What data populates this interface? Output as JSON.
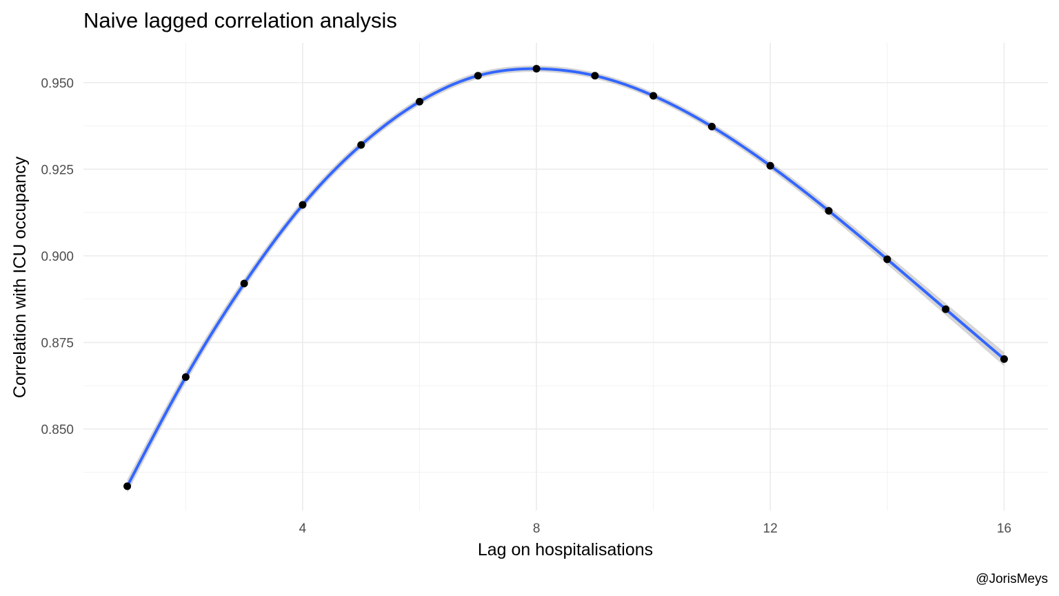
{
  "chart_data": {
    "type": "scatter",
    "title": "Naive lagged correlation analysis",
    "xlabel": "Lag on hospitalisations",
    "ylabel": "Correlation with ICU occupancy",
    "caption": "@JorisMeys",
    "xlim": [
      0.25,
      16.75
    ],
    "ylim": [
      0.8265,
      0.9615
    ],
    "x_ticks": [
      4,
      8,
      12,
      16
    ],
    "x_tick_labels": [
      "4",
      "8",
      "12",
      "16"
    ],
    "y_ticks": [
      0.85,
      0.875,
      0.9,
      0.925,
      0.95
    ],
    "y_tick_labels": [
      "0.850",
      "0.875",
      "0.900",
      "0.925",
      "0.950"
    ],
    "grid": true,
    "series": [
      {
        "points": [
          {
            "x": 1,
            "y": 0.8335
          },
          {
            "x": 2,
            "y": 0.865
          },
          {
            "x": 3,
            "y": 0.892
          },
          {
            "x": 4,
            "y": 0.9147
          },
          {
            "x": 5,
            "y": 0.932
          },
          {
            "x": 6,
            "y": 0.9445
          },
          {
            "x": 7,
            "y": 0.952
          },
          {
            "x": 8,
            "y": 0.954
          },
          {
            "x": 9,
            "y": 0.952
          },
          {
            "x": 10,
            "y": 0.9462
          },
          {
            "x": 11,
            "y": 0.9373
          },
          {
            "x": 12,
            "y": 0.926
          },
          {
            "x": 13,
            "y": 0.913
          },
          {
            "x": 14,
            "y": 0.899
          },
          {
            "x": 15,
            "y": 0.8846
          },
          {
            "x": 16,
            "y": 0.8702
          }
        ]
      }
    ],
    "smooth": {
      "method": "loess",
      "color": "#3366ff",
      "se_band_color": "#999999"
    },
    "colors": {
      "points": "#000000",
      "grid_major": "#ebebeb",
      "grid_minor": "#f2f2f2"
    }
  }
}
